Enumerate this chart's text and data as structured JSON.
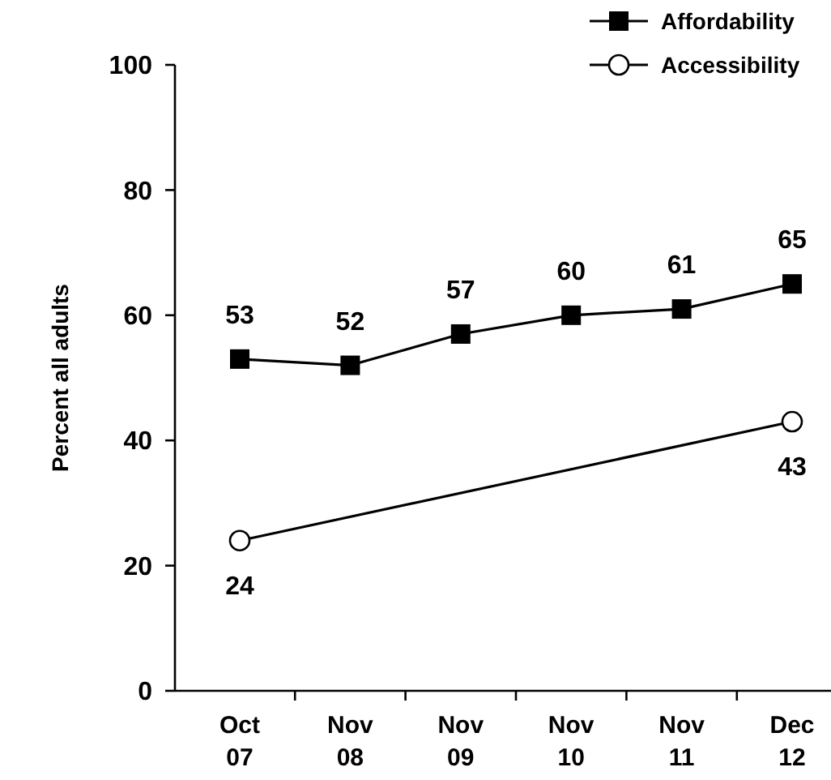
{
  "chart_data": {
    "type": "line",
    "ylabel": "Percent all adults",
    "categories": [
      "Oct\n07",
      "Nov\n08",
      "Nov\n09",
      "Nov\n10",
      "Nov\n11",
      "Dec\n12"
    ],
    "ylim": [
      0,
      100
    ],
    "yticks": [
      0,
      20,
      40,
      60,
      80,
      100
    ],
    "grid": false,
    "legend": "top right",
    "data_labels": true,
    "series": [
      {
        "name": "Affordability",
        "color": "#000000",
        "marker": "square",
        "values": [
          53,
          52,
          57,
          60,
          61,
          65
        ]
      },
      {
        "name": "Accessibility",
        "color": "#000000",
        "marker": "circle",
        "values": [
          24,
          null,
          null,
          null,
          null,
          43
        ]
      }
    ]
  }
}
